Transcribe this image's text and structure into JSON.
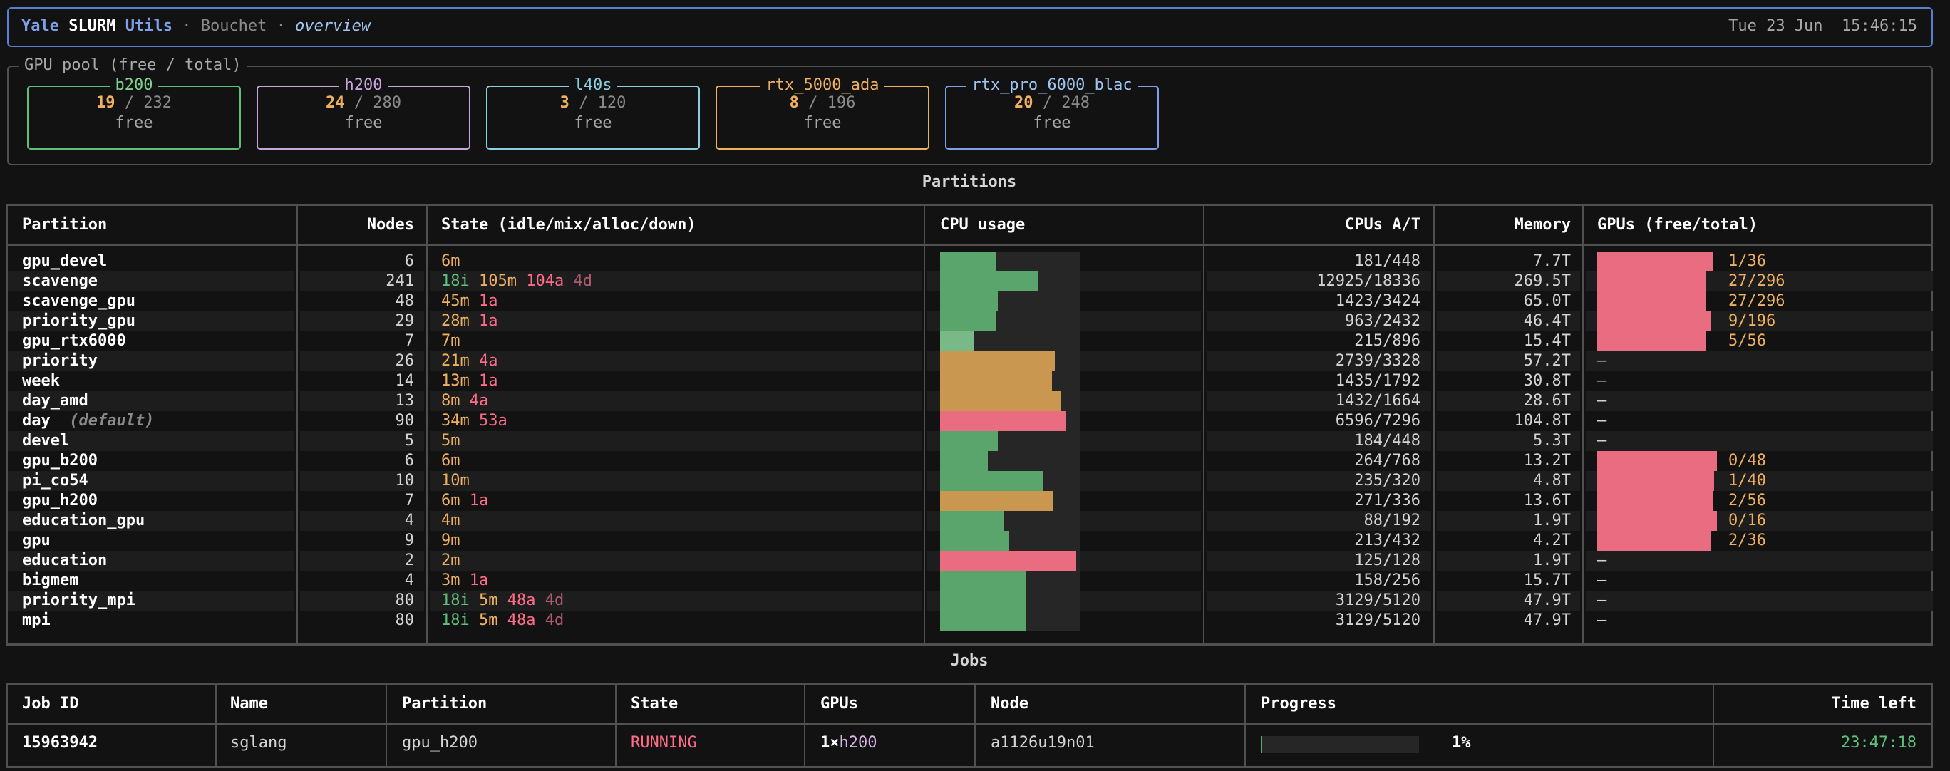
{
  "header": {
    "brand_yale": "Yale",
    "brand_slurm": "SLURM",
    "brand_utils": "Utils",
    "sep": "·",
    "cluster": "Bouchet",
    "view": "overview",
    "datetime": "Tue 23 Jun  15:46:15"
  },
  "gpu_pool": {
    "title": "GPU pool (free / total)",
    "free_label": "free",
    "slash": "/",
    "cards": [
      {
        "name": "b200",
        "free": "19",
        "total": "232",
        "border": "#5ec07a",
        "name_color": "#7fd08f"
      },
      {
        "name": "h200",
        "free": "24",
        "total": "280",
        "border": "#c6a6dc",
        "name_color": "#c6a6dc"
      },
      {
        "name": "l40s",
        "free": "3",
        "total": "120",
        "border": "#8ad0e0",
        "name_color": "#8ad0e0"
      },
      {
        "name": "rtx_5000_ada",
        "free": "8",
        "total": "196",
        "border": "#f0b060",
        "name_color": "#f0b060"
      },
      {
        "name": "rtx_pro_6000_blac",
        "free": "20",
        "total": "248",
        "border": "#7ea0e8",
        "name_color": "#a0c4f0"
      }
    ]
  },
  "partitions": {
    "title": "Partitions",
    "columns": [
      "Partition",
      "Nodes",
      "State (idle/mix/alloc/down)",
      "CPU usage",
      "CPUs A/T",
      "Memory",
      "GPUs (free/total)"
    ],
    "default_note": "(default)",
    "dash": "–",
    "rows": [
      {
        "name": "gpu_devel",
        "nodes": "6",
        "state": [
          {
            "t": "6m",
            "k": "m"
          }
        ],
        "cpu_used": 181,
        "cpu_total": 448,
        "cpus": "181/448",
        "mem": "7.7T",
        "gpu_free": 1,
        "gpu_total": 36,
        "gpus": "1/36"
      },
      {
        "name": "scavenge",
        "nodes": "241",
        "state": [
          {
            "t": "18i",
            "k": "i"
          },
          {
            "t": "105m",
            "k": "m"
          },
          {
            "t": "104a",
            "k": "a"
          },
          {
            "t": "4d",
            "k": "d"
          }
        ],
        "cpu_used": 12925,
        "cpu_total": 18336,
        "cpus": "12925/18336",
        "mem": "269.5T",
        "gpu_free": 27,
        "gpu_total": 296,
        "gpus": "27/296"
      },
      {
        "name": "scavenge_gpu",
        "nodes": "48",
        "state": [
          {
            "t": "45m",
            "k": "m"
          },
          {
            "t": "1a",
            "k": "a"
          }
        ],
        "cpu_used": 1423,
        "cpu_total": 3424,
        "cpus": "1423/3424",
        "mem": "65.0T",
        "gpu_free": 27,
        "gpu_total": 296,
        "gpus": "27/296"
      },
      {
        "name": "priority_gpu",
        "nodes": "29",
        "state": [
          {
            "t": "28m",
            "k": "m"
          },
          {
            "t": "1a",
            "k": "a"
          }
        ],
        "cpu_used": 963,
        "cpu_total": 2432,
        "cpus": "963/2432",
        "mem": "46.4T",
        "gpu_free": 9,
        "gpu_total": 196,
        "gpus": "9/196"
      },
      {
        "name": "gpu_rtx6000",
        "nodes": "7",
        "state": [
          {
            "t": "7m",
            "k": "m"
          }
        ],
        "cpu_used": 215,
        "cpu_total": 896,
        "cpus": "215/896",
        "mem": "15.4T",
        "gpu_free": 5,
        "gpu_total": 56,
        "gpus": "5/56"
      },
      {
        "name": "priority",
        "nodes": "26",
        "state": [
          {
            "t": "21m",
            "k": "m"
          },
          {
            "t": "4a",
            "k": "a"
          }
        ],
        "cpu_used": 2739,
        "cpu_total": 3328,
        "cpus": "2739/3328",
        "mem": "57.2T",
        "gpus": "–"
      },
      {
        "name": "week",
        "nodes": "14",
        "state": [
          {
            "t": "13m",
            "k": "m"
          },
          {
            "t": "1a",
            "k": "a"
          }
        ],
        "cpu_used": 1435,
        "cpu_total": 1792,
        "cpus": "1435/1792",
        "mem": "30.8T",
        "gpus": "–"
      },
      {
        "name": "day_amd",
        "nodes": "13",
        "state": [
          {
            "t": "8m",
            "k": "m"
          },
          {
            "t": "4a",
            "k": "a"
          }
        ],
        "cpu_used": 1432,
        "cpu_total": 1664,
        "cpus": "1432/1664",
        "mem": "28.6T",
        "gpus": "–"
      },
      {
        "name": "day",
        "is_default": true,
        "nodes": "90",
        "state": [
          {
            "t": "34m",
            "k": "m"
          },
          {
            "t": "53a",
            "k": "a"
          }
        ],
        "cpu_used": 6596,
        "cpu_total": 7296,
        "cpus": "6596/7296",
        "mem": "104.8T",
        "gpus": "–"
      },
      {
        "name": "devel",
        "nodes": "5",
        "state": [
          {
            "t": "5m",
            "k": "m"
          }
        ],
        "cpu_used": 184,
        "cpu_total": 448,
        "cpus": "184/448",
        "mem": "5.3T",
        "gpus": "–"
      },
      {
        "name": "gpu_b200",
        "nodes": "6",
        "state": [
          {
            "t": "6m",
            "k": "m"
          }
        ],
        "cpu_used": 264,
        "cpu_total": 768,
        "cpus": "264/768",
        "mem": "13.2T",
        "gpu_free": 0,
        "gpu_total": 48,
        "gpus": "0/48"
      },
      {
        "name": "pi_co54",
        "nodes": "10",
        "state": [
          {
            "t": "10m",
            "k": "m"
          }
        ],
        "cpu_used": 235,
        "cpu_total": 320,
        "cpus": "235/320",
        "mem": "4.8T",
        "gpu_free": 1,
        "gpu_total": 40,
        "gpus": "1/40"
      },
      {
        "name": "gpu_h200",
        "nodes": "7",
        "state": [
          {
            "t": "6m",
            "k": "m"
          },
          {
            "t": "1a",
            "k": "a"
          }
        ],
        "cpu_used": 271,
        "cpu_total": 336,
        "cpus": "271/336",
        "mem": "13.6T",
        "gpu_free": 2,
        "gpu_total": 56,
        "gpus": "2/56"
      },
      {
        "name": "education_gpu",
        "nodes": "4",
        "state": [
          {
            "t": "4m",
            "k": "m"
          }
        ],
        "cpu_used": 88,
        "cpu_total": 192,
        "cpus": "88/192",
        "mem": "1.9T",
        "gpu_free": 0,
        "gpu_total": 16,
        "gpus": "0/16"
      },
      {
        "name": "gpu",
        "nodes": "9",
        "state": [
          {
            "t": "9m",
            "k": "m"
          }
        ],
        "cpu_used": 213,
        "cpu_total": 432,
        "cpus": "213/432",
        "mem": "4.2T",
        "gpu_free": 2,
        "gpu_total": 36,
        "gpus": "2/36"
      },
      {
        "name": "education",
        "nodes": "2",
        "state": [
          {
            "t": "2m",
            "k": "m"
          }
        ],
        "cpu_used": 125,
        "cpu_total": 128,
        "cpus": "125/128",
        "mem": "1.9T",
        "gpus": "–"
      },
      {
        "name": "bigmem",
        "nodes": "4",
        "state": [
          {
            "t": "3m",
            "k": "m"
          },
          {
            "t": "1a",
            "k": "a"
          }
        ],
        "cpu_used": 158,
        "cpu_total": 256,
        "cpus": "158/256",
        "mem": "15.7T",
        "gpus": "–"
      },
      {
        "name": "priority_mpi",
        "nodes": "80",
        "state": [
          {
            "t": "18i",
            "k": "i"
          },
          {
            "t": "5m",
            "k": "m"
          },
          {
            "t": "48a",
            "k": "a"
          },
          {
            "t": "4d",
            "k": "d"
          }
        ],
        "cpu_used": 3129,
        "cpu_total": 5120,
        "cpus": "3129/5120",
        "mem": "47.9T",
        "gpus": "–"
      },
      {
        "name": "mpi",
        "nodes": "80",
        "state": [
          {
            "t": "18i",
            "k": "i"
          },
          {
            "t": "5m",
            "k": "m"
          },
          {
            "t": "48a",
            "k": "a"
          },
          {
            "t": "4d",
            "k": "d"
          }
        ],
        "cpu_used": 3129,
        "cpu_total": 5120,
        "cpus": "3129/5120",
        "mem": "47.9T",
        "gpus": "–"
      }
    ]
  },
  "jobs": {
    "title": "Jobs",
    "columns": [
      "Job ID",
      "Name",
      "Partition",
      "State",
      "GPUs",
      "Node",
      "Progress",
      "Time left"
    ],
    "rows": [
      {
        "id": "15963942",
        "name": "sglang",
        "partition": "gpu_h200",
        "state": "RUNNING",
        "gpu_count": "1×",
        "gpu_type": "h200",
        "node": "a1126u19n01",
        "progress": 0.01,
        "progress_text": "1%",
        "time_left": "23:47:18"
      }
    ]
  },
  "colors": {
    "cpu_green": "#5aa56c",
    "cpu_lightgreen": "#79b887",
    "cpu_orange": "#c9974f",
    "cpu_red": "#e96c80",
    "gpu_bar": "#e96c80"
  }
}
